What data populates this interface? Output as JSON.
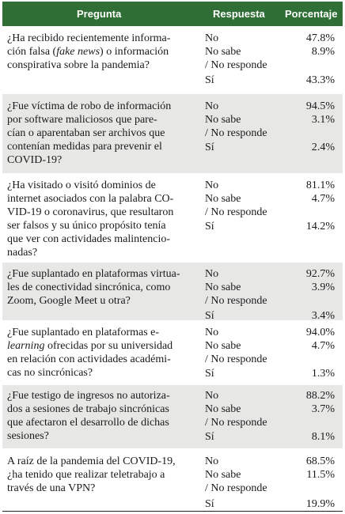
{
  "header": {
    "question": "Pregunta",
    "answer": "Respuesta",
    "percentage": "Porcentaje"
  },
  "answer_labels": {
    "no": "No",
    "dont_know_1": "No sabe",
    "dont_know_2": "/ No responde",
    "yes": "Sí"
  },
  "rows": [
    {
      "question_lines": [
        "¿Ha recibido recientemente informa-",
        "ción falsa (|fake news|) o información",
        "conspirativa sobre la pandemia?"
      ],
      "no": "47.8%",
      "dont_know": "8.9%",
      "yes": "43.3%"
    },
    {
      "question_lines": [
        "¿Fue víctima de robo de información",
        "por software maliciosos que pare-",
        "cían o aparentaban ser archivos que",
        "contenían medidas para prevenir el",
        "COVID-19?"
      ],
      "no": "94.5%",
      "dont_know": "3.1%",
      "yes": "2.4%"
    },
    {
      "question_lines": [
        "¿Ha visitado o visitó dominios de",
        "internet asociados con la palabra CO-",
        "VID-19 o coronavirus, que resultaron",
        "ser falsos y su único propósito tenía",
        "que ver con actividades malintencio-",
        "nadas?"
      ],
      "no": "81.1%",
      "dont_know": "4.7%",
      "yes": "14.2%"
    },
    {
      "question_lines": [
        "¿Fue suplantado en plataformas virtua-",
        "les de conectividad sincrónica, como",
        "Zoom, Google Meet u otra?"
      ],
      "no": "92.7%",
      "dont_know": "3.9%",
      "yes": "3.4%"
    },
    {
      "question_lines": [
        "¿Fue suplantado en plataformas e-",
        "|learning| ofrecidas por su universidad",
        "en relación con actividades académi-",
        "cas no sincrónicas?"
      ],
      "no": "94.0%",
      "dont_know": "4.7%",
      "yes": "1.3%"
    },
    {
      "question_lines": [
        "¿Fue testigo de ingresos no autoriza-",
        "dos a sesiones de trabajo sincrónicas",
        "que afectaron el desarrollo de dichas",
        "sesiones?"
      ],
      "no": "88.2%",
      "dont_know": "3.7%",
      "yes": "8.1%"
    },
    {
      "question_lines": [
        "A raíz de la pandemia del COVID-19,",
        "¿ha tenido que realizar teletrabajo a",
        "través de una VPN?"
      ],
      "no": "68.5%",
      "dont_know": "11.5%",
      "yes": "19.9%"
    }
  ]
}
